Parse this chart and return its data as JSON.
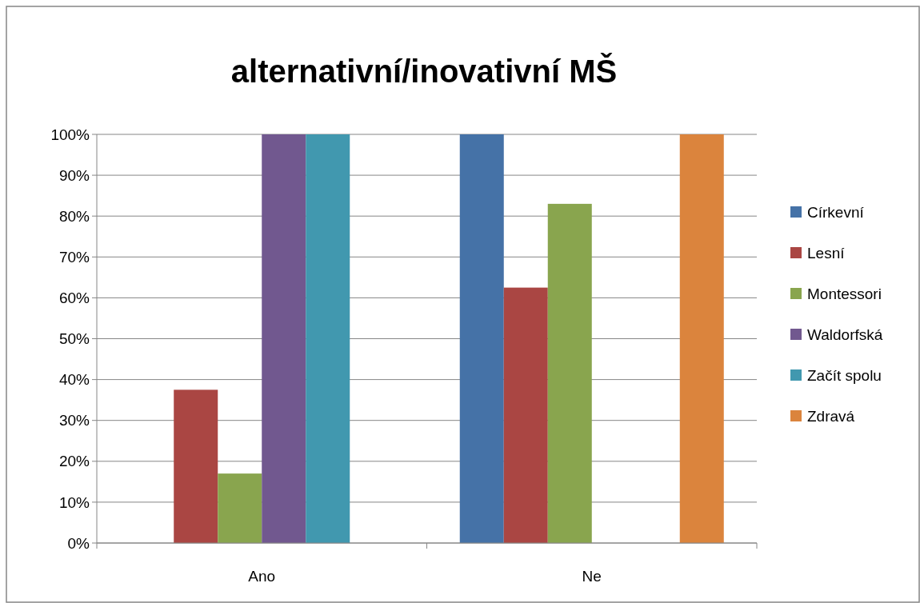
{
  "chart_data": {
    "type": "bar",
    "title": "alternativní/inovativní MŠ",
    "categories": [
      "Ano",
      "Ne"
    ],
    "series": [
      {
        "name": "Církevní",
        "color": "#4572a7",
        "values": [
          0,
          100
        ]
      },
      {
        "name": "Lesní",
        "color": "#aa4643",
        "values": [
          37.5,
          62.5
        ]
      },
      {
        "name": "Montessori",
        "color": "#89a54e",
        "values": [
          17,
          83
        ]
      },
      {
        "name": "Waldorfská",
        "color": "#71588f",
        "values": [
          100,
          0
        ]
      },
      {
        "name": "Začít spolu",
        "color": "#4198af",
        "values": [
          100,
          0
        ]
      },
      {
        "name": "Zdravá",
        "color": "#db843d",
        "values": [
          0,
          100
        ]
      }
    ],
    "ylim": [
      0,
      100
    ],
    "yticks": [
      {
        "value": 0,
        "label": "0%"
      },
      {
        "value": 10,
        "label": "10%"
      },
      {
        "value": 20,
        "label": "20%"
      },
      {
        "value": 30,
        "label": "30%"
      },
      {
        "value": 40,
        "label": "40%"
      },
      {
        "value": 50,
        "label": "50%"
      },
      {
        "value": 60,
        "label": "60%"
      },
      {
        "value": 70,
        "label": "70%"
      },
      {
        "value": 80,
        "label": "80%"
      },
      {
        "value": 90,
        "label": "90%"
      },
      {
        "value": 100,
        "label": "100%"
      }
    ],
    "grid": "y",
    "legend": "right"
  }
}
